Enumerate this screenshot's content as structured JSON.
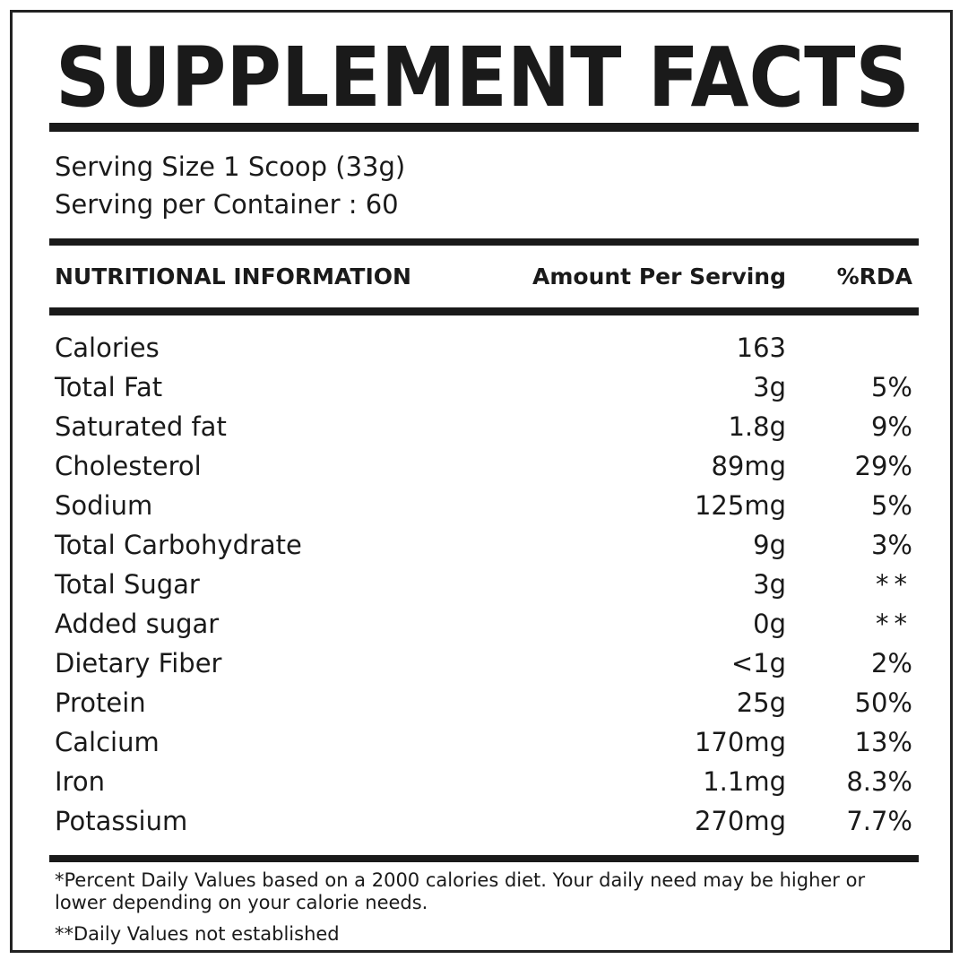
{
  "title": "SUPPLEMENT FACTS",
  "serving": [
    "Serving Size 1 Scoop (33g)",
    "Serving per Container : 60"
  ],
  "table": {
    "headers": [
      "NUTRITIONAL INFORMATION",
      "Amount Per Serving",
      "%RDA"
    ],
    "rows": [
      {
        "name": "Calories",
        "amount": "163"
      },
      {
        "name": "Total Fat",
        "amount": "3g",
        "rda": "5%"
      },
      {
        "name": "Saturated fat",
        "amount": "1.8g",
        "rda": "9%"
      },
      {
        "name": "Cholesterol",
        "amount": "89mg",
        "rda": "29%"
      },
      {
        "name": "Sodium",
        "amount": "125mg",
        "rda": "5%"
      },
      {
        "name": "Total Carbohydrate",
        "amount": "9g",
        "rda": "3%"
      },
      {
        "name": "Total Sugar",
        "amount": "3g",
        "rda": "**"
      },
      {
        "name": "Added sugar",
        "amount": "0g",
        "rda": "**"
      },
      {
        "name": "Dietary Fiber",
        "amount": "<1g",
        "rda": "2%"
      },
      {
        "name": "Protein",
        "amount": "25g",
        "rda": "50%"
      },
      {
        "name": "Calcium",
        "amount": "170mg",
        "rda": "13%"
      },
      {
        "name": "Iron",
        "amount": "1.1mg",
        "rda": "8.3%"
      },
      {
        "name": "Potassium",
        "amount": "270mg",
        "rda": "7.7%"
      }
    ]
  },
  "footnotes": [
    "*Percent Daily Values based on a 2000 calories diet. Your daily need may be higher or lower depending on your calorie needs.",
    "**Daily Values not established"
  ]
}
